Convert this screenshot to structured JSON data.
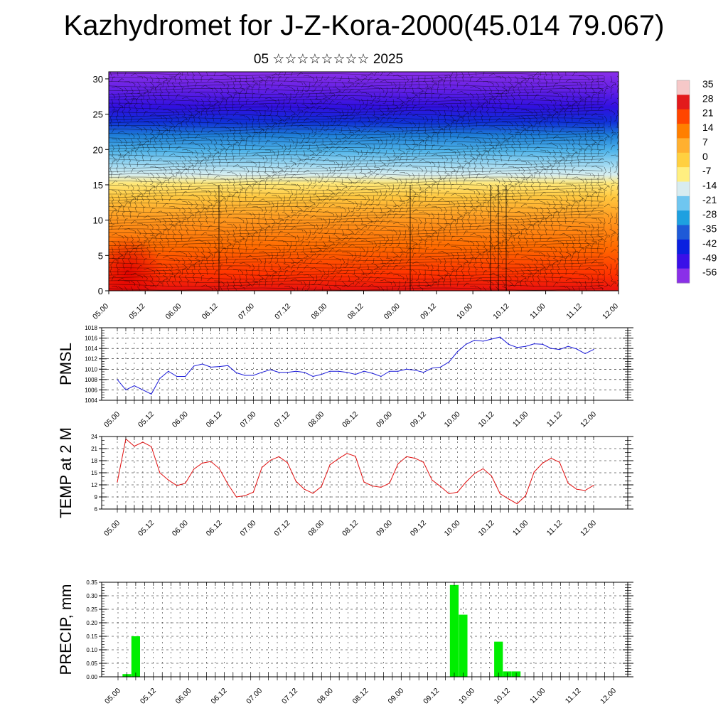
{
  "title": "Kazhydromet for J-Z-Kora-2000(45.014 79.067)",
  "subtitle": "05 ☆☆☆☆☆☆☆☆ 2025",
  "chart_data": [
    {
      "type": "heatmap",
      "name": "cross-section",
      "yticks": [
        "0",
        "5",
        "10",
        "15",
        "20",
        "25",
        "30"
      ],
      "ylim": [
        0,
        31
      ],
      "xticks": [
        "05.00",
        "05.12",
        "06.00",
        "06.12",
        "07.00",
        "07.12",
        "08.00",
        "08.12",
        "09.00",
        "09.12",
        "10.00",
        "10.12",
        "11.00",
        "11.12",
        "12.00"
      ],
      "colorbar_labels": [
        "35",
        "28",
        "21",
        "14",
        "7",
        "0",
        "-7",
        "-14",
        "-21",
        "-28",
        "-35",
        "-42",
        "-49",
        "-56"
      ],
      "colorbar_colors": [
        "#f6c8c8",
        "#e31a1c",
        "#ff4500",
        "#ff7f00",
        "#ffb030",
        "#ffd040",
        "#ffef80",
        "#d8ecf0",
        "#6fc6f0",
        "#1ea0e0",
        "#1e5ad8",
        "#0a20e0",
        "#3a10e8",
        "#8a30e8"
      ]
    },
    {
      "type": "line",
      "ylabel": "PMSL",
      "ylim": [
        1004,
        1018
      ],
      "yticks": [
        "1004",
        "1006",
        "1008",
        "1010",
        "1012",
        "1014",
        "1016",
        "1018"
      ],
      "xticks": [
        "05.00",
        "05.12",
        "06.00",
        "06.12",
        "07.00",
        "07.12",
        "08.00",
        "08.12",
        "09.00",
        "09.12",
        "10.00",
        "10.12",
        "11.00",
        "11.12",
        "12.00"
      ],
      "color": "#1a1ad8",
      "values": [
        1008,
        1006,
        1006.8,
        1006,
        1005.2,
        1008.2,
        1009.6,
        1008.6,
        1008.6,
        1010.6,
        1011,
        1010.4,
        1010.5,
        1010.7,
        1009.3,
        1008.8,
        1008.8,
        1009.4,
        1009.9,
        1009.4,
        1009.4,
        1009.6,
        1009.4,
        1008.6,
        1009,
        1009.6,
        1009.6,
        1009.4,
        1009,
        1009.6,
        1009.2,
        1008.6,
        1009.6,
        1009.6,
        1010,
        1009.8,
        1009.4,
        1010.2,
        1010.4,
        1011.4,
        1013.4,
        1014.8,
        1015.6,
        1015.4,
        1015.8,
        1016.2,
        1014.8,
        1014.2,
        1014.4,
        1014.9,
        1014.8,
        1014,
        1013.8,
        1014.4,
        1013.9,
        1013,
        1013.8
      ]
    },
    {
      "type": "line",
      "ylabel": "TEMP at 2 M",
      "ylim": [
        6,
        24
      ],
      "yticks": [
        "6",
        "9",
        "12",
        "15",
        "18",
        "21",
        "24"
      ],
      "xticks": [
        "05.00",
        "05.12",
        "06.00",
        "06.12",
        "07.00",
        "07.12",
        "08.00",
        "08.12",
        "09.00",
        "09.12",
        "10.00",
        "10.12",
        "11.00",
        "11.12",
        "12.00"
      ],
      "color": "#e01010",
      "values": [
        12.7,
        23.4,
        21.6,
        22.6,
        21.5,
        15,
        13.2,
        11.8,
        12.4,
        15.9,
        17.4,
        17.8,
        16,
        12.2,
        9,
        9.3,
        10.2,
        16.3,
        18.1,
        19,
        17.5,
        12.9,
        10.9,
        9.9,
        11.6,
        17,
        18.5,
        19.8,
        19.1,
        12.7,
        11.7,
        11.4,
        12.4,
        17.2,
        19,
        18.6,
        17.6,
        13.2,
        11.6,
        9.8,
        10.2,
        12.7,
        14.8,
        16,
        14.2,
        9.8,
        8.5,
        7.3,
        9.3,
        15.2,
        17.4,
        18.6,
        17.6,
        12.4,
        10.9,
        10.6,
        11.9
      ]
    },
    {
      "type": "bar",
      "ylabel": "PRECIP, mm",
      "ylim": [
        0,
        0.35
      ],
      "yticks": [
        "0.00",
        "0.05",
        "0.10",
        "0.15",
        "0.20",
        "0.25",
        "0.30",
        "0.35"
      ],
      "xticks": [
        "05.00",
        "05.12",
        "06.00",
        "06.12",
        "07.00",
        "07.12",
        "08.00",
        "08.12",
        "09.00",
        "09.12",
        "10.00",
        "10.12",
        "11.00",
        "11.12",
        "12.00"
      ],
      "color": "#00ee00",
      "values": [
        0,
        0.01,
        0.15,
        0,
        0,
        0,
        0,
        0,
        0,
        0,
        0,
        0,
        0,
        0,
        0,
        0,
        0,
        0,
        0,
        0,
        0,
        0,
        0,
        0,
        0,
        0,
        0,
        0,
        0,
        0,
        0,
        0,
        0,
        0,
        0,
        0,
        0,
        0,
        0.34,
        0.23,
        0,
        0,
        0,
        0.13,
        0.02,
        0.02,
        0,
        0,
        0,
        0,
        0,
        0,
        0,
        0,
        0,
        0,
        0
      ]
    }
  ]
}
